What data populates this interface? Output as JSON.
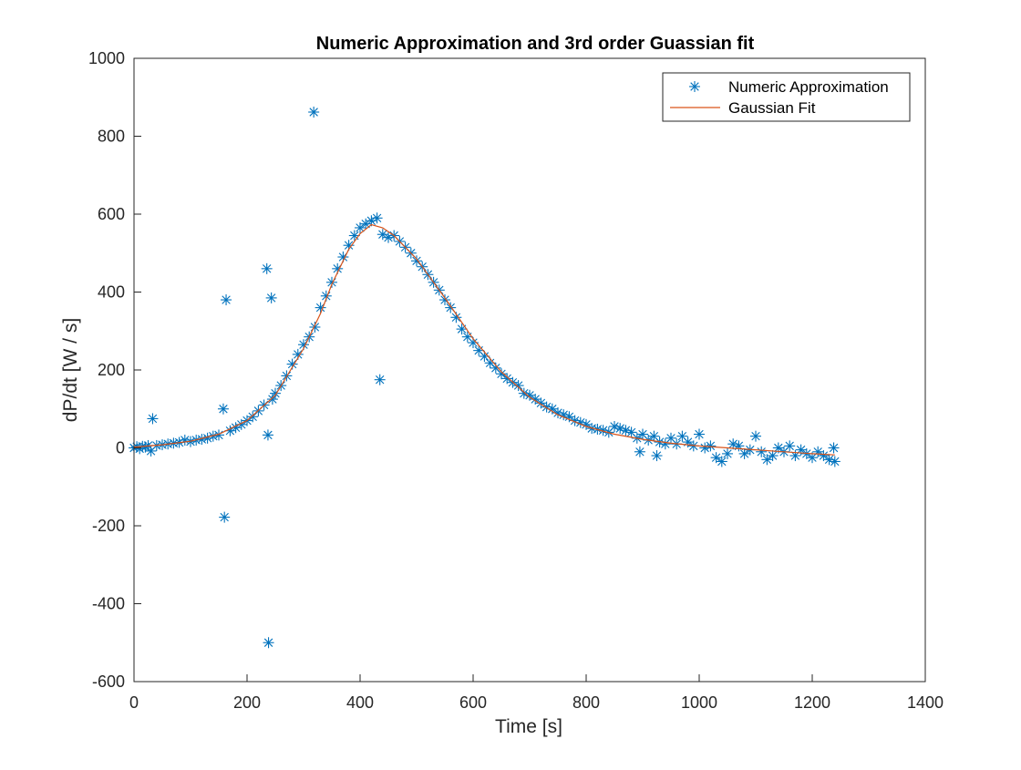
{
  "chart_data": {
    "type": "scatter",
    "title": "Numeric Approximation and 3rd order Guassian fit",
    "xlabel": "Time [s]",
    "ylabel": "dP/dt [W / s]",
    "xlim": [
      0,
      1400
    ],
    "ylim": [
      -600,
      1000
    ],
    "x_ticks": [
      "0",
      "200",
      "400",
      "600",
      "800",
      "1000",
      "1200",
      "1400"
    ],
    "y_ticks": [
      "-600",
      "-400",
      "-200",
      "0",
      "200",
      "400",
      "600",
      "800",
      "1000"
    ],
    "x_tick_values": [
      0,
      200,
      400,
      600,
      800,
      1000,
      1200,
      1400
    ],
    "y_tick_values": [
      -600,
      -400,
      -200,
      0,
      200,
      400,
      600,
      800,
      1000
    ],
    "grid": false,
    "legend_position": "top-right",
    "series": [
      {
        "name": "Numeric Approximation",
        "kind": "scatter",
        "marker": "asterisk",
        "color": "#0072BD",
        "points": [
          [
            0,
            0
          ],
          [
            5,
            3
          ],
          [
            10,
            -2
          ],
          [
            15,
            4
          ],
          [
            20,
            2
          ],
          [
            25,
            6
          ],
          [
            30,
            -8
          ],
          [
            33,
            75
          ],
          [
            40,
            6
          ],
          [
            50,
            8
          ],
          [
            60,
            10
          ],
          [
            70,
            12
          ],
          [
            80,
            14
          ],
          [
            90,
            20
          ],
          [
            100,
            16
          ],
          [
            110,
            20
          ],
          [
            120,
            22
          ],
          [
            130,
            25
          ],
          [
            140,
            30
          ],
          [
            150,
            33
          ],
          [
            158,
            100
          ],
          [
            160,
            -178
          ],
          [
            163,
            380
          ],
          [
            170,
            44
          ],
          [
            180,
            52
          ],
          [
            190,
            60
          ],
          [
            200,
            70
          ],
          [
            210,
            80
          ],
          [
            220,
            95
          ],
          [
            230,
            110
          ],
          [
            235,
            460
          ],
          [
            237,
            33
          ],
          [
            238,
            -500
          ],
          [
            243,
            385
          ],
          [
            245,
            125
          ],
          [
            250,
            140
          ],
          [
            260,
            160
          ],
          [
            270,
            185
          ],
          [
            280,
            215
          ],
          [
            290,
            240
          ],
          [
            300,
            265
          ],
          [
            310,
            285
          ],
          [
            318,
            862
          ],
          [
            320,
            310
          ],
          [
            330,
            360
          ],
          [
            340,
            390
          ],
          [
            350,
            425
          ],
          [
            360,
            460
          ],
          [
            370,
            490
          ],
          [
            380,
            520
          ],
          [
            390,
            545
          ],
          [
            400,
            565
          ],
          [
            410,
            575
          ],
          [
            420,
            583
          ],
          [
            430,
            590
          ],
          [
            435,
            175
          ],
          [
            440,
            548
          ],
          [
            450,
            540
          ],
          [
            460,
            545
          ],
          [
            470,
            530
          ],
          [
            480,
            515
          ],
          [
            490,
            500
          ],
          [
            500,
            480
          ],
          [
            510,
            465
          ],
          [
            520,
            445
          ],
          [
            530,
            425
          ],
          [
            540,
            405
          ],
          [
            550,
            380
          ],
          [
            560,
            360
          ],
          [
            570,
            335
          ],
          [
            580,
            305
          ],
          [
            590,
            285
          ],
          [
            600,
            270
          ],
          [
            610,
            250
          ],
          [
            620,
            235
          ],
          [
            630,
            218
          ],
          [
            640,
            205
          ],
          [
            650,
            190
          ],
          [
            660,
            178
          ],
          [
            670,
            168
          ],
          [
            680,
            160
          ],
          [
            690,
            140
          ],
          [
            700,
            135
          ],
          [
            710,
            125
          ],
          [
            720,
            115
          ],
          [
            730,
            105
          ],
          [
            740,
            100
          ],
          [
            750,
            90
          ],
          [
            760,
            85
          ],
          [
            770,
            80
          ],
          [
            780,
            70
          ],
          [
            790,
            65
          ],
          [
            800,
            60
          ],
          [
            810,
            50
          ],
          [
            820,
            48
          ],
          [
            830,
            45
          ],
          [
            840,
            40
          ],
          [
            850,
            55
          ],
          [
            860,
            50
          ],
          [
            870,
            45
          ],
          [
            880,
            40
          ],
          [
            890,
            25
          ],
          [
            895,
            -10
          ],
          [
            900,
            35
          ],
          [
            910,
            20
          ],
          [
            920,
            30
          ],
          [
            925,
            -20
          ],
          [
            930,
            15
          ],
          [
            940,
            10
          ],
          [
            950,
            25
          ],
          [
            960,
            10
          ],
          [
            970,
            30
          ],
          [
            980,
            15
          ],
          [
            990,
            5
          ],
          [
            1000,
            35
          ],
          [
            1010,
            0
          ],
          [
            1020,
            5
          ],
          [
            1030,
            -25
          ],
          [
            1040,
            -35
          ],
          [
            1050,
            -15
          ],
          [
            1060,
            10
          ],
          [
            1070,
            5
          ],
          [
            1080,
            -15
          ],
          [
            1090,
            -5
          ],
          [
            1100,
            30
          ],
          [
            1110,
            -10
          ],
          [
            1120,
            -30
          ],
          [
            1130,
            -20
          ],
          [
            1140,
            0
          ],
          [
            1150,
            -10
          ],
          [
            1160,
            5
          ],
          [
            1170,
            -20
          ],
          [
            1180,
            -5
          ],
          [
            1190,
            -15
          ],
          [
            1200,
            -25
          ],
          [
            1210,
            -10
          ],
          [
            1220,
            -20
          ],
          [
            1230,
            -30
          ],
          [
            1238,
            0
          ],
          [
            1240,
            -35
          ]
        ]
      },
      {
        "name": "Gaussian Fit",
        "kind": "line",
        "color": "#D95319",
        "points": [
          [
            0,
            2
          ],
          [
            50,
            8
          ],
          [
            100,
            17
          ],
          [
            150,
            35
          ],
          [
            200,
            70
          ],
          [
            250,
            135
          ],
          [
            300,
            255
          ],
          [
            330,
            345
          ],
          [
            350,
            420
          ],
          [
            380,
            510
          ],
          [
            400,
            550
          ],
          [
            420,
            573
          ],
          [
            440,
            565
          ],
          [
            460,
            545
          ],
          [
            500,
            485
          ],
          [
            550,
            385
          ],
          [
            600,
            280
          ],
          [
            650,
            195
          ],
          [
            700,
            130
          ],
          [
            750,
            85
          ],
          [
            800,
            55
          ],
          [
            850,
            35
          ],
          [
            900,
            22
          ],
          [
            950,
            12
          ],
          [
            1000,
            5
          ],
          [
            1050,
            0
          ],
          [
            1100,
            -5
          ],
          [
            1150,
            -10
          ],
          [
            1200,
            -15
          ],
          [
            1240,
            -18
          ]
        ]
      }
    ]
  }
}
